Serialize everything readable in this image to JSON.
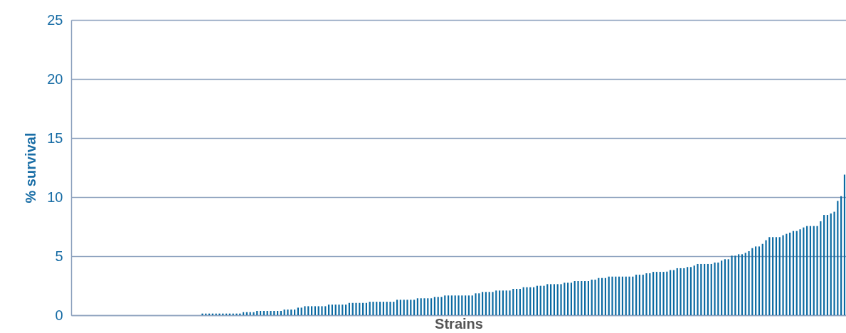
{
  "chart_data": {
    "type": "bar",
    "xlabel": "Strains",
    "ylabel": "% survival",
    "categories": [
      null,
      null,
      null,
      null,
      null,
      null,
      null,
      null,
      null,
      null,
      null,
      null,
      null,
      null,
      null,
      null,
      null,
      null,
      null,
      null,
      null,
      null,
      null,
      null,
      null,
      null,
      null,
      null,
      null,
      null,
      null,
      null,
      null,
      null,
      null,
      null,
      null,
      null,
      null,
      null,
      null,
      null,
      null,
      null,
      null,
      null,
      null,
      null,
      null,
      null,
      null,
      null,
      null,
      null,
      null,
      null,
      null,
      null,
      null,
      null,
      null,
      null,
      null,
      null,
      null,
      null,
      null,
      null,
      null,
      null,
      null,
      null,
      null,
      null,
      null,
      null,
      null,
      null,
      null,
      null,
      null,
      null,
      null,
      null,
      null,
      null,
      null,
      null,
      null,
      null,
      null,
      null,
      null,
      null,
      null,
      null,
      null,
      null,
      null,
      null,
      null,
      null,
      null,
      null,
      null,
      null,
      null,
      null,
      null,
      null,
      null,
      null,
      null,
      null,
      null,
      null,
      null,
      null,
      null,
      null,
      null,
      null,
      null,
      null,
      null,
      null,
      null,
      null,
      null,
      null,
      null,
      null,
      null,
      null,
      null,
      null,
      null,
      null,
      null,
      null,
      null,
      null,
      null,
      null,
      null,
      null,
      null,
      null,
      null,
      null,
      null,
      null,
      null,
      null,
      null,
      null,
      null,
      null,
      null,
      null,
      null,
      null,
      null,
      null,
      null,
      null,
      null,
      null,
      null,
      null,
      null,
      null,
      null,
      null,
      null,
      null,
      null,
      null,
      null,
      null,
      null,
      null,
      null,
      null,
      null,
      null,
      null,
      null,
      null,
      null,
      null,
      null,
      null,
      null,
      null,
      null,
      null,
      null,
      null,
      null,
      null,
      null,
      null,
      null,
      null,
      null,
      null,
      null,
      null,
      null,
      null,
      null,
      null,
      null,
      null,
      null,
      null,
      null,
      null,
      null,
      null,
      null,
      null,
      null,
      null,
      null,
      null
    ],
    "values": [
      0,
      0,
      0,
      0,
      0,
      0,
      0,
      0,
      0,
      0,
      0,
      0,
      0,
      0,
      0,
      0,
      0,
      0,
      0,
      0,
      0,
      0,
      0,
      0,
      0,
      0,
      0,
      0,
      0,
      0,
      0,
      0,
      0,
      0,
      0,
      0,
      0,
      0,
      0.14,
      0.14,
      0.14,
      0.14,
      0.14,
      0.14,
      0.14,
      0.14,
      0.14,
      0.14,
      0.14,
      0.14,
      0.26,
      0.26,
      0.26,
      0.26,
      0.36,
      0.36,
      0.36,
      0.36,
      0.36,
      0.36,
      0.36,
      0.36,
      0.48,
      0.48,
      0.48,
      0.48,
      0.64,
      0.64,
      0.76,
      0.76,
      0.76,
      0.76,
      0.76,
      0.76,
      0.76,
      0.9,
      0.9,
      0.9,
      0.9,
      0.9,
      0.9,
      1.04,
      1.04,
      1.04,
      1.04,
      1.04,
      1.04,
      1.14,
      1.14,
      1.14,
      1.14,
      1.14,
      1.14,
      1.14,
      1.14,
      1.31,
      1.31,
      1.31,
      1.31,
      1.31,
      1.31,
      1.43,
      1.43,
      1.43,
      1.43,
      1.43,
      1.55,
      1.55,
      1.55,
      1.67,
      1.67,
      1.67,
      1.67,
      1.67,
      1.67,
      1.67,
      1.67,
      1.67,
      1.85,
      1.85,
      1.97,
      1.97,
      1.97,
      1.97,
      2.09,
      2.09,
      2.09,
      2.09,
      2.09,
      2.23,
      2.23,
      2.23,
      2.37,
      2.37,
      2.37,
      2.37,
      2.49,
      2.49,
      2.49,
      2.63,
      2.63,
      2.63,
      2.63,
      2.63,
      2.75,
      2.75,
      2.75,
      2.89,
      2.89,
      2.89,
      2.89,
      2.89,
      3.01,
      3.01,
      3.15,
      3.15,
      3.15,
      3.27,
      3.27,
      3.27,
      3.27,
      3.27,
      3.27,
      3.27,
      3.27,
      3.43,
      3.43,
      3.43,
      3.55,
      3.55,
      3.67,
      3.67,
      3.67,
      3.67,
      3.69,
      3.82,
      3.82,
      3.98,
      3.98,
      3.98,
      4.08,
      4.08,
      4.2,
      4.34,
      4.34,
      4.34,
      4.34,
      4.34,
      4.46,
      4.46,
      4.62,
      4.74,
      4.74,
      5.04,
      5.04,
      5.16,
      5.16,
      5.28,
      5.42,
      5.68,
      5.82,
      5.82,
      6.04,
      6.35,
      6.61,
      6.61,
      6.61,
      6.61,
      6.77,
      6.89,
      6.99,
      7.13,
      7.13,
      7.27,
      7.43,
      7.55,
      7.55,
      7.55,
      7.55,
      7.95,
      8.49,
      8.49,
      8.61,
      8.76,
      9.68,
      10.08,
      11.9
    ],
    "color": "#0b6aa2",
    "ylim": [
      0,
      25
    ],
    "yticks": [
      0,
      5,
      10,
      15,
      20,
      25
    ],
    "grid": "y",
    "tick_labels": "y"
  }
}
